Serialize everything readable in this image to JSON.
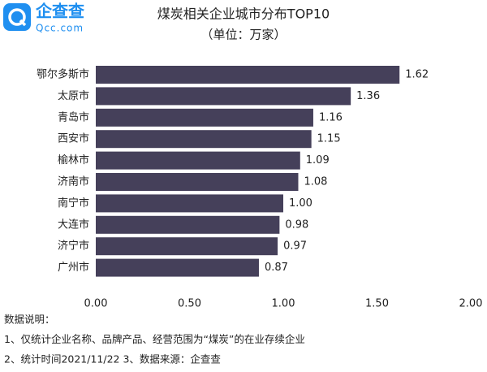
{
  "logo": {
    "name": "企查查",
    "domain": "Qcc.com"
  },
  "chart_data": {
    "type": "bar",
    "orientation": "horizontal",
    "title": "煤炭相关企业城市分布TOP10",
    "subtitle": "（单位：万家）",
    "categories": [
      "鄂尔多斯市",
      "太原市",
      "青岛市",
      "西安市",
      "榆林市",
      "济南市",
      "南宁市",
      "大连市",
      "济宁市",
      "广州市"
    ],
    "values": [
      1.62,
      1.36,
      1.16,
      1.15,
      1.09,
      1.08,
      1.0,
      0.98,
      0.97,
      0.87
    ],
    "value_labels": [
      "1.62",
      "1.36",
      "1.16",
      "1.15",
      "1.09",
      "1.08",
      "1.00",
      "0.98",
      "0.97",
      "0.87"
    ],
    "color": "#45405a",
    "xlim": [
      0,
      2
    ],
    "xticks": [
      {
        "value": 0,
        "label": "0.00"
      },
      {
        "value": 0.5,
        "label": "0.50"
      },
      {
        "value": 1,
        "label": "1.00"
      },
      {
        "value": 1.5,
        "label": "1.50"
      },
      {
        "value": 2,
        "label": "2.00"
      }
    ],
    "grid": false,
    "notes": [
      "数据说明：",
      "1、仅统计企业名称、品牌产品、经营范围为“煤炭”的在业存续企业",
      "2、统计时间2021/11/22   3、数据来源：企查查"
    ]
  }
}
